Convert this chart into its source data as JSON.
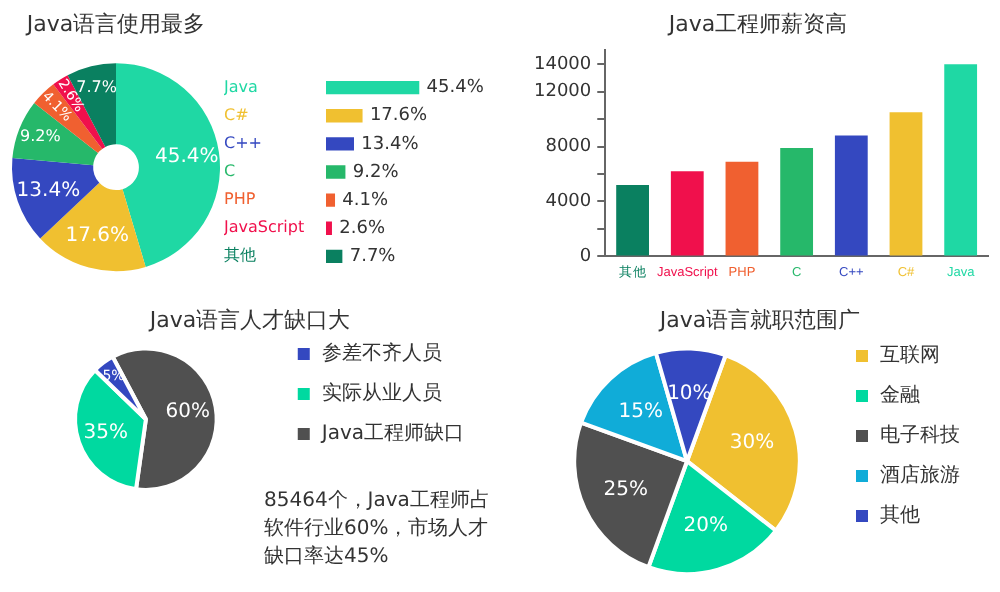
{
  "chart_data": [
    {
      "type": "donut",
      "title": "Java语言使用最多",
      "categories": [
        null,
        null,
        null,
        null,
        null,
        null,
        null
      ],
      "values": [
        45.4,
        17.6,
        13.4,
        9.2,
        4.1,
        2.6,
        7.7
      ],
      "value_labels": [
        "45.4%",
        "17.6%",
        "13.4%",
        "9.2%",
        "4.1%",
        "2.6%",
        "7.7%"
      ],
      "colors": [
        "#1fd8a4",
        "#f0c030",
        "#3448c0",
        "#26b86a",
        "#f06030",
        "#f0104c",
        "#0a8060"
      ]
    },
    {
      "type": "bar",
      "orientation": "horizontal",
      "categories": [
        "Java",
        "C#",
        "C++",
        "C",
        "PHP",
        "JavaScript",
        "其他"
      ],
      "values": [
        45.4,
        17.6,
        13.4,
        9.2,
        4.1,
        2.6,
        7.7
      ],
      "value_labels": [
        "45.4%",
        "17.6%",
        "13.4%",
        "9.2%",
        "4.1%",
        "2.6%",
        "7.7%"
      ],
      "colors": [
        "#1fd8a4",
        "#f0c030",
        "#3448c0",
        "#26b86a",
        "#f06030",
        "#f0104c",
        "#0a8060"
      ],
      "tick_labels": "y"
    },
    {
      "type": "bar",
      "title": "Java工程师薪资高",
      "categories": [
        "其他",
        "JavaScript",
        "PHP",
        "C",
        "C++",
        "C#",
        "Java"
      ],
      "values": [
        5200,
        6200,
        6900,
        7900,
        8800,
        10500,
        14000
      ],
      "colors": [
        "#0a8060",
        "#f0104c",
        "#f06030",
        "#26b86a",
        "#3448c0",
        "#f0c030",
        "#1fd8a4"
      ],
      "ylim": [
        0,
        15000
      ],
      "yticks": [
        0,
        {
          "value": 2000,
          "label": null
        },
        4000,
        {
          "value": 6000,
          "label": null
        },
        8000,
        {
          "value": 10000,
          "label": null
        },
        12000,
        14000
      ],
      "grid": false
    },
    {
      "type": "pie",
      "title": "Java语言人才缺口大",
      "categories": [
        "参差不齐人员",
        "实际从业人员",
        "Java工程师缺口"
      ],
      "values": [
        5,
        35,
        60
      ],
      "value_labels": [
        "5%",
        "35%",
        "60%"
      ],
      "colors": [
        "#3448c0",
        "#00d9a0",
        "#505050"
      ],
      "legend": "right",
      "annotations": [
        "85464个，Java工程师占软件行业60%，市场人才缺口率达45%"
      ]
    },
    {
      "type": "pie",
      "title": "Java语言就职范围广",
      "categories": [
        "互联网",
        "金融",
        "电子科技",
        "酒店旅游",
        "其他"
      ],
      "values": [
        30,
        20,
        25,
        15,
        10
      ],
      "value_labels": [
        "30%",
        "20%",
        "25%",
        "15%",
        "10%"
      ],
      "colors": [
        "#f0c030",
        "#00d9a0",
        "#505050",
        "#10acd8",
        "#3448c0"
      ],
      "legend": "right"
    }
  ]
}
